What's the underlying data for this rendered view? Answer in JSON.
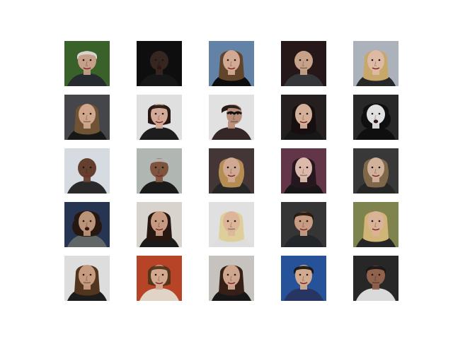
{
  "grid": {
    "tiles": [
      {
        "bg": "#3f6a2d",
        "skin": "#d6ad93",
        "hair": "#e9e9e7",
        "shirt": "#2a2f33",
        "head": "wide",
        "hair_style": "short",
        "glasses": false,
        "mouth": "smile"
      },
      {
        "bg": "#101010",
        "skin": "#3b2a24",
        "hair": "#1a1a1a",
        "shirt": "#1a1a1a",
        "head": "wide",
        "hair_style": "bald",
        "glasses": false,
        "mouth": "open"
      },
      {
        "bg": "#6c8fb5",
        "skin": "#e4b8a0",
        "hair": "#6a4a2e",
        "shirt": "#0f0f0f",
        "head": "normal",
        "hair_style": "long",
        "glasses": false,
        "mouth": "smile"
      },
      {
        "bg": "#2a1b1b",
        "skin": "#d8b095",
        "hair": "#c9c0b2",
        "shirt": "#3a3b3e",
        "head": "wide",
        "hair_style": "bald",
        "glasses": false,
        "mouth": "neutral"
      },
      {
        "bg": "#bbc2cc",
        "skin": "#f1c9b2",
        "hair": "#d8b774",
        "shirt": "#2b2b2b",
        "head": "normal",
        "hair_style": "long",
        "glasses": false,
        "mouth": "smile"
      },
      {
        "bg": "#4a4d50",
        "skin": "#e2b699",
        "hair": "#7a5a3a",
        "shirt": "#1a1a1a",
        "head": "normal",
        "hair_style": "long",
        "glasses": false,
        "mouth": "neutral"
      },
      {
        "bg": "#f2f2f2",
        "skin": "#e4b7a3",
        "hair": "#2a1a15",
        "shirt": "#202020",
        "head": "normal",
        "hair_style": "bob",
        "glasses": false,
        "mouth": "smile"
      },
      {
        "bg": "#f5f5f5",
        "skin": "#c89a85",
        "hair": "#2b1d18",
        "shirt": "#3a2b2b",
        "head": "profile",
        "hair_style": "short",
        "glasses": true,
        "mouth": "neutral"
      },
      {
        "bg": "#2a2222",
        "skin": "#e6bfa5",
        "hair": "#1a1111",
        "shirt": "#1a1a1a",
        "head": "normal",
        "hair_style": "long",
        "glasses": false,
        "mouth": "smile"
      },
      {
        "bg": "#2c2c2c",
        "skin": "#f3f3f3",
        "hair": "#111111",
        "shirt": "#111111",
        "head": "wide",
        "hair_style": "wild",
        "glasses": false,
        "mouth": "open"
      },
      {
        "bg": "#e9eef5",
        "skin": "#6d4532",
        "hair": "#221713",
        "shirt": "#2d2d2d",
        "head": "wide",
        "hair_style": "bald",
        "glasses": false,
        "mouth": "smile"
      },
      {
        "bg": "#bfc7c2",
        "skin": "#8a5c44",
        "hair": "#c8c8c8",
        "shirt": "#1d1d1d",
        "head": "wide",
        "hair_style": "short",
        "glasses": false,
        "mouth": "smile"
      },
      {
        "bg": "#4a3b3b",
        "skin": "#e3b89f",
        "hair": "#c59a5a",
        "shirt": "#2a2a2a",
        "head": "normal",
        "hair_style": "wavy",
        "glasses": false,
        "mouth": "smile"
      },
      {
        "bg": "#6b3a4f",
        "skin": "#efc9b9",
        "hair": "#2a1a22",
        "shirt": "#1a1a1a",
        "head": "normal",
        "hair_style": "long",
        "glasses": false,
        "mouth": "neutral"
      },
      {
        "bg": "#3d3d3d",
        "skin": "#e4c0a8",
        "hair": "#8a7150",
        "shirt": "#2a2a2a",
        "head": "normal",
        "hair_style": "wavy",
        "glasses": false,
        "mouth": "smile"
      },
      {
        "bg": "#2a3a5a",
        "skin": "#caa084",
        "hair": "#2a1a12",
        "shirt": "#6a7070",
        "head": "normal",
        "hair_style": "wild",
        "glasses": false,
        "mouth": "open"
      },
      {
        "bg": "#ece5df",
        "skin": "#d9a78c",
        "hair": "#2a1a14",
        "shirt": "#1e1e1e",
        "head": "normal",
        "hair_style": "long",
        "glasses": false,
        "mouth": "smile"
      },
      {
        "bg": "#f4f4f4",
        "skin": "#f0c6a8",
        "hair": "#f1e0a8",
        "shirt": "#f0f0f0",
        "head": "normal",
        "hair_style": "long",
        "glasses": false,
        "mouth": "neutral"
      },
      {
        "bg": "#3a3a3a",
        "skin": "#d9aa8e",
        "hair": "#2a1a12",
        "shirt": "#272a2e",
        "head": "wide",
        "hair_style": "short",
        "glasses": false,
        "mouth": "smile"
      },
      {
        "bg": "#8a8f55",
        "skin": "#edc2a4",
        "hair": "#e2c581",
        "shirt": "#2a2a2a",
        "head": "normal",
        "hair_style": "long",
        "glasses": false,
        "mouth": "smile"
      },
      {
        "bg": "#f0f0f0",
        "skin": "#d7a98a",
        "hair": "#5a3a22",
        "shirt": "#1f1f1f",
        "head": "normal",
        "hair_style": "long",
        "glasses": false,
        "mouth": "neutral"
      },
      {
        "bg": "#c74a2a",
        "skin": "#e6b79b",
        "hair": "#5a3a1e",
        "shirt": "#f2e7d6",
        "head": "normal",
        "hair_style": "bob",
        "glasses": false,
        "mouth": "smile"
      },
      {
        "bg": "#d7d3cf",
        "skin": "#e0b59a",
        "hair": "#3a2218",
        "shirt": "#1a1a1a",
        "head": "normal",
        "hair_style": "long",
        "glasses": false,
        "mouth": "smile"
      },
      {
        "bg": "#2a5aa8",
        "skin": "#e3b99c",
        "hair": "#1e1a18",
        "shirt": "#2a3a6a",
        "head": "normal",
        "hair_style": "short",
        "glasses": false,
        "mouth": "smile"
      },
      {
        "bg": "#2b2b2b",
        "skin": "#9d6a52",
        "hair": "#1a1a1a",
        "shirt": "#ededed",
        "head": "wide",
        "hair_style": "short",
        "glasses": false,
        "mouth": "neutral"
      }
    ]
  }
}
